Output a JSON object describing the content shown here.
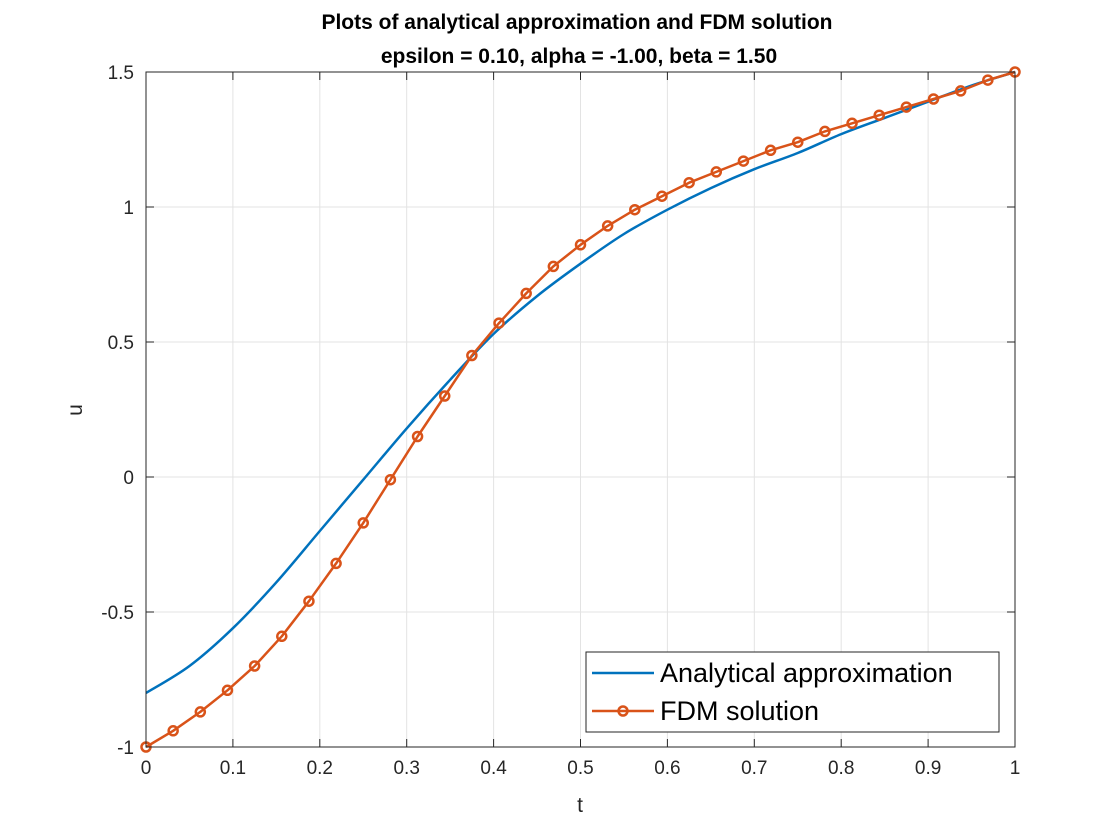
{
  "chart_data": {
    "type": "line",
    "title": "Plots of analytical approximation and FDM solution",
    "subtitle": "epsilon = 0.10, alpha = -1.00, beta = 1.50",
    "xlabel": "t",
    "ylabel": "u",
    "xlim": [
      0,
      1
    ],
    "ylim": [
      -1,
      1.5
    ],
    "xticks": [
      0,
      0.1,
      0.2,
      0.3,
      0.4,
      0.5,
      0.6,
      0.7,
      0.8,
      0.9,
      1
    ],
    "xtick_labels": [
      "0",
      "0.1",
      "0.2",
      "0.3",
      "0.4",
      "0.5",
      "0.6",
      "0.7",
      "0.8",
      "0.9",
      "1"
    ],
    "yticks": [
      -1,
      -0.5,
      0,
      0.5,
      1,
      1.5
    ],
    "ytick_labels": [
      "-1",
      "-0.5",
      "0",
      "0.5",
      "1",
      "1.5"
    ],
    "grid": true,
    "legend_position": "bottom-right",
    "series": [
      {
        "name": "Analytical approximation",
        "color": "#0072BD",
        "marker": "none",
        "x": [
          0,
          0.05,
          0.1,
          0.15,
          0.2,
          0.25,
          0.3,
          0.35,
          0.4,
          0.45,
          0.5,
          0.55,
          0.6,
          0.65,
          0.7,
          0.75,
          0.8,
          0.85,
          0.9,
          0.95,
          1
        ],
        "y": [
          -0.8,
          -0.7,
          -0.56,
          -0.39,
          -0.2,
          -0.01,
          0.18,
          0.36,
          0.53,
          0.67,
          0.79,
          0.9,
          0.99,
          1.07,
          1.14,
          1.2,
          1.27,
          1.33,
          1.39,
          1.45,
          1.5
        ]
      },
      {
        "name": "FDM solution",
        "color": "#D95319",
        "marker": "circle",
        "x": [
          0,
          0.03125,
          0.0625,
          0.09375,
          0.125,
          0.15625,
          0.1875,
          0.21875,
          0.25,
          0.28125,
          0.3125,
          0.34375,
          0.375,
          0.40625,
          0.4375,
          0.46875,
          0.5,
          0.53125,
          0.5625,
          0.59375,
          0.625,
          0.65625,
          0.6875,
          0.71875,
          0.75,
          0.78125,
          0.8125,
          0.84375,
          0.875,
          0.90625,
          0.9375,
          0.96875,
          1
        ],
        "y": [
          -1,
          -0.94,
          -0.87,
          -0.79,
          -0.7,
          -0.59,
          -0.46,
          -0.32,
          -0.17,
          -0.01,
          0.15,
          0.3,
          0.45,
          0.57,
          0.68,
          0.78,
          0.86,
          0.93,
          0.99,
          1.04,
          1.09,
          1.13,
          1.17,
          1.21,
          1.24,
          1.28,
          1.31,
          1.34,
          1.37,
          1.4,
          1.43,
          1.47,
          1.5
        ]
      }
    ]
  }
}
